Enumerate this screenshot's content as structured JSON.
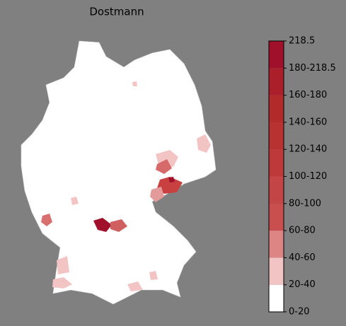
{
  "title": "Dostmann",
  "colorbar": {
    "labels": [
      "0-20",
      "20-40",
      "40-60",
      "60-80",
      "80-100",
      "100-120",
      "120-140",
      "140-160",
      "160-180",
      "180-218.5",
      "218.5"
    ],
    "colors": [
      "#ffffff",
      "#f2c4c4",
      "#dd8585",
      "#c94f4f",
      "#c44545",
      "#be3a3a",
      "#b83232",
      "#b22a2a",
      "#ab1f2a",
      "#a0102a"
    ]
  }
}
